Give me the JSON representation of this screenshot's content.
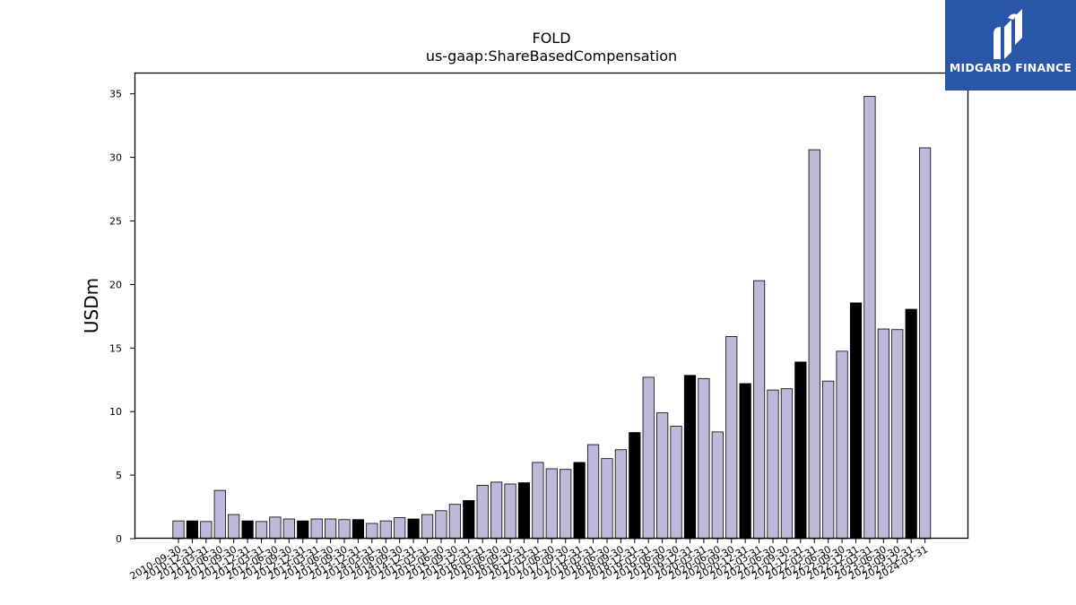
{
  "logo": {
    "text": "MIDGARD FINANCE",
    "bg_color": "#2a56a8"
  },
  "chart_data": {
    "type": "bar",
    "title": "FOLD",
    "subtitle": "us-gaap:ShareBasedCompensation",
    "xlabel": "",
    "ylabel": "USDm",
    "ylim": [
      0,
      36.6
    ],
    "yticks": [
      0,
      5,
      10,
      15,
      20,
      25,
      30,
      35
    ],
    "grid": false,
    "colors": {
      "quarter": "#bcbad8",
      "annual": "#000000",
      "edge": "#000000"
    },
    "categories": [
      "2010-09-30",
      "2010-12-31",
      "2011-03-31",
      "2011-06-30",
      "2011-09-30",
      "2011-12-31",
      "2012-03-31",
      "2012-06-30",
      "2012-09-30",
      "2012-12-31",
      "2013-03-31",
      "2013-06-30",
      "2013-09-30",
      "2013-12-31",
      "2014-03-31",
      "2014-06-30",
      "2014-09-30",
      "2014-12-31",
      "2015-03-31",
      "2015-06-30",
      "2015-09-30",
      "2015-12-31",
      "2016-03-31",
      "2016-06-30",
      "2016-09-30",
      "2016-12-31",
      "2017-03-31",
      "2017-06-30",
      "2017-09-30",
      "2017-12-31",
      "2018-03-31",
      "2018-06-30",
      "2018-09-30",
      "2018-12-31",
      "2019-03-31",
      "2019-06-30",
      "2019-09-30",
      "2019-12-31",
      "2020-03-31",
      "2020-06-30",
      "2020-09-30",
      "2020-12-31",
      "2021-03-31",
      "2021-06-30",
      "2021-09-30",
      "2021-12-31",
      "2022-03-31",
      "2022-06-30",
      "2022-09-30",
      "2022-12-31",
      "2023-03-31",
      "2023-06-30",
      "2023-09-30",
      "2023-12-31",
      "2024-03-31"
    ],
    "values": [
      1.4,
      1.4,
      1.35,
      3.8,
      1.9,
      1.4,
      1.35,
      1.7,
      1.55,
      1.4,
      1.55,
      1.55,
      1.5,
      1.5,
      1.2,
      1.4,
      1.65,
      1.55,
      1.9,
      2.2,
      2.7,
      3.0,
      4.2,
      4.45,
      4.3,
      4.4,
      6.0,
      5.5,
      5.45,
      6.0,
      7.4,
      6.3,
      7.0,
      8.35,
      12.7,
      9.9,
      8.85,
      12.85,
      12.6,
      8.4,
      15.9,
      12.2,
      20.3,
      11.7,
      11.8,
      13.9,
      30.6,
      12.4,
      14.75,
      18.55,
      34.8,
      16.5,
      16.45,
      18.05,
      30.75
    ],
    "annual": [
      false,
      true,
      false,
      false,
      false,
      true,
      false,
      false,
      false,
      true,
      false,
      false,
      false,
      true,
      false,
      false,
      false,
      true,
      false,
      false,
      false,
      true,
      false,
      false,
      false,
      true,
      false,
      false,
      false,
      true,
      false,
      false,
      false,
      true,
      false,
      false,
      false,
      true,
      false,
      false,
      false,
      true,
      false,
      false,
      false,
      true,
      false,
      false,
      false,
      true,
      false,
      false,
      false,
      true,
      false
    ]
  }
}
